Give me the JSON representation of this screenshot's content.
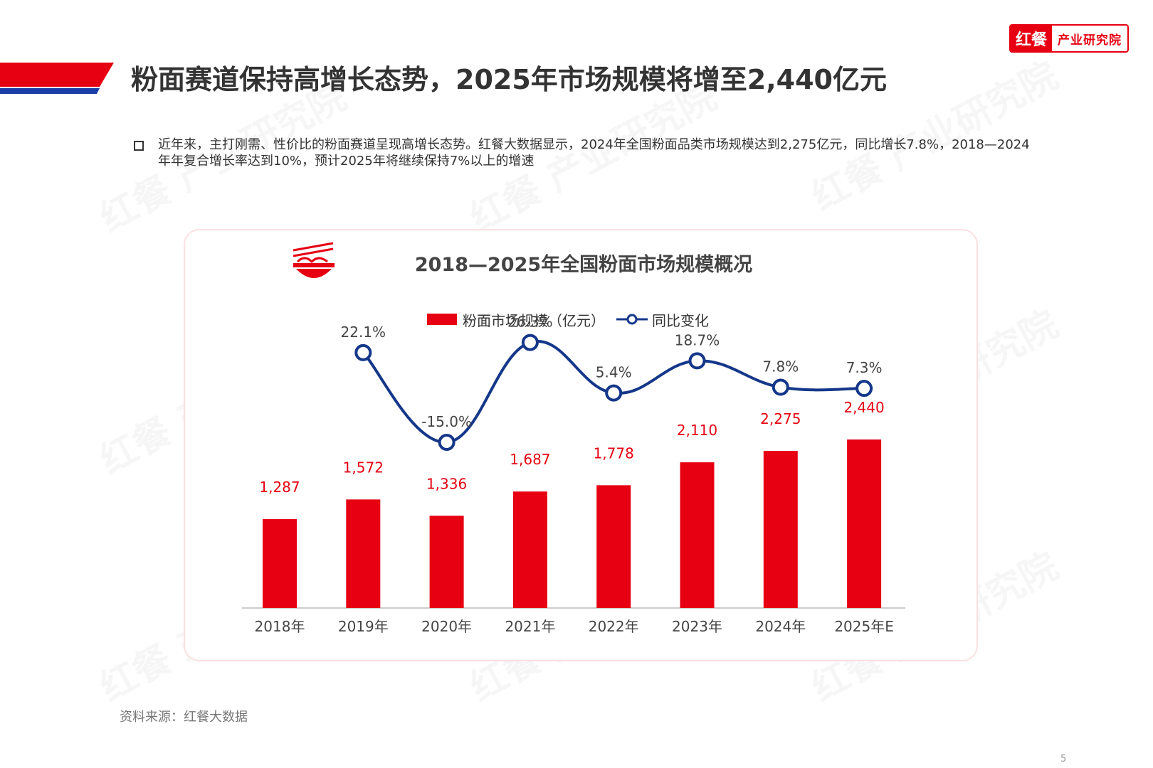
{
  "logo": {
    "part1": "红餐",
    "part2": "产业研究院"
  },
  "page": {
    "title": "粉面赛道保持高增长态势，2025年市场规模将增至2,440亿元",
    "intro": "近年来，主打刚需、性价比的粉面赛道呈现高增长态势。红餐大数据显示，2024年全国粉面品类市场规模达到2,275亿元，同比增长7.8%，2018—2024年年复合增长率达到10%，预计2025年将继续保持7%以上的增速",
    "source": "资料来源：红餐大数据",
    "page_number": "5",
    "watermark": "红餐 产业研究院"
  },
  "colors": {
    "accent": "#e60012",
    "line": "#14378a",
    "banner_blue": "#1a3ea5"
  },
  "chart_data": {
    "type": "bar",
    "title": "2018—2025年全国粉面市场规模概况",
    "categories": [
      "2018年",
      "2019年",
      "2020年",
      "2021年",
      "2022年",
      "2023年",
      "2024年",
      "2025年E"
    ],
    "series": [
      {
        "name": "粉面市场规模（亿元）",
        "type": "bar",
        "values": [
          1287,
          1572,
          1336,
          1687,
          1778,
          2110,
          2275,
          2440
        ],
        "labels": [
          "1,287",
          "1,572",
          "1,336",
          "1,687",
          "1,778",
          "2,110",
          "2,275",
          "2,440"
        ]
      },
      {
        "name": "同比变化",
        "type": "line",
        "values": [
          null,
          22.1,
          -15.0,
          26.3,
          5.4,
          18.7,
          7.8,
          7.3
        ],
        "labels": [
          "",
          "22.1%",
          "-15.0%",
          "26.3%",
          "5.4%",
          "18.7%",
          "7.8%",
          "7.3%"
        ]
      }
    ],
    "legend_position": "top",
    "grid": false
  }
}
